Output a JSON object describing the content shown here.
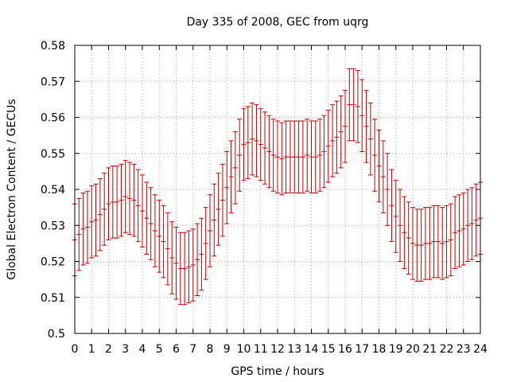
{
  "chart_data": {
    "type": "line",
    "title": "Day 335 of 2008, GEC from uqrg",
    "xlabel": "GPS time / hours",
    "ylabel": "Global Electron Content / GECUs",
    "xlim": [
      0,
      24
    ],
    "ylim": [
      0.5,
      0.58
    ],
    "xticks": [
      0,
      1,
      2,
      3,
      4,
      5,
      6,
      7,
      8,
      9,
      10,
      11,
      12,
      13,
      14,
      15,
      16,
      17,
      18,
      19,
      20,
      21,
      22,
      23,
      24
    ],
    "yticks": [
      0.5,
      0.51,
      0.52,
      0.53,
      0.54,
      0.55,
      0.56,
      0.57,
      0.58
    ],
    "grid": true,
    "colors": {
      "series": "#c00000",
      "grid": "#a0a0a0",
      "frame": "#000000"
    },
    "series": [
      {
        "style": "errorbars",
        "error": 0.01,
        "x": [
          0,
          0.25,
          0.5,
          0.75,
          1,
          1.25,
          1.5,
          1.75,
          2,
          2.25,
          2.5,
          2.75,
          3,
          3.25,
          3.5,
          3.75,
          4,
          4.25,
          4.5,
          4.75,
          5,
          5.25,
          5.5,
          5.75,
          6,
          6.25,
          6.5,
          6.75,
          7,
          7.25,
          7.5,
          7.75,
          8,
          8.25,
          8.5,
          8.75,
          9,
          9.25,
          9.5,
          9.75,
          10,
          10.25,
          10.5,
          10.75,
          11,
          11.25,
          11.5,
          11.75,
          12,
          12.25,
          12.5,
          12.75,
          13,
          13.25,
          13.5,
          13.75,
          14,
          14.25,
          14.5,
          14.75,
          15,
          15.25,
          15.5,
          15.75,
          16,
          16.25,
          16.5,
          16.75,
          17,
          17.25,
          17.5,
          17.75,
          18,
          18.25,
          18.5,
          18.75,
          19,
          19.25,
          19.5,
          19.75,
          20,
          20.25,
          20.5,
          20.75,
          21,
          21.25,
          21.5,
          21.75,
          22,
          22.25,
          22.5,
          22.75,
          23,
          23.25,
          23.5,
          23.75,
          24
        ],
        "y": [
          0.526,
          0.5275,
          0.529,
          0.5295,
          0.531,
          0.5315,
          0.533,
          0.5345,
          0.536,
          0.5365,
          0.5365,
          0.537,
          0.538,
          0.5375,
          0.537,
          0.5355,
          0.534,
          0.532,
          0.5305,
          0.5285,
          0.527,
          0.5255,
          0.5235,
          0.521,
          0.5195,
          0.518,
          0.518,
          0.5185,
          0.519,
          0.5205,
          0.522,
          0.525,
          0.5285,
          0.5315,
          0.5345,
          0.537,
          0.5405,
          0.5435,
          0.546,
          0.5495,
          0.5525,
          0.553,
          0.554,
          0.5535,
          0.5525,
          0.5515,
          0.5505,
          0.5495,
          0.549,
          0.5485,
          0.549,
          0.549,
          0.549,
          0.549,
          0.549,
          0.5495,
          0.549,
          0.549,
          0.5495,
          0.5505,
          0.552,
          0.5535,
          0.5545,
          0.556,
          0.5575,
          0.5635,
          0.5635,
          0.563,
          0.5605,
          0.5575,
          0.554,
          0.5495,
          0.5465,
          0.5435,
          0.54,
          0.5355,
          0.5325,
          0.53,
          0.528,
          0.5265,
          0.525,
          0.5245,
          0.5245,
          0.525,
          0.525,
          0.5255,
          0.5255,
          0.525,
          0.5255,
          0.526,
          0.528,
          0.5285,
          0.529,
          0.53,
          0.5305,
          0.5315,
          0.532
        ]
      }
    ]
  }
}
